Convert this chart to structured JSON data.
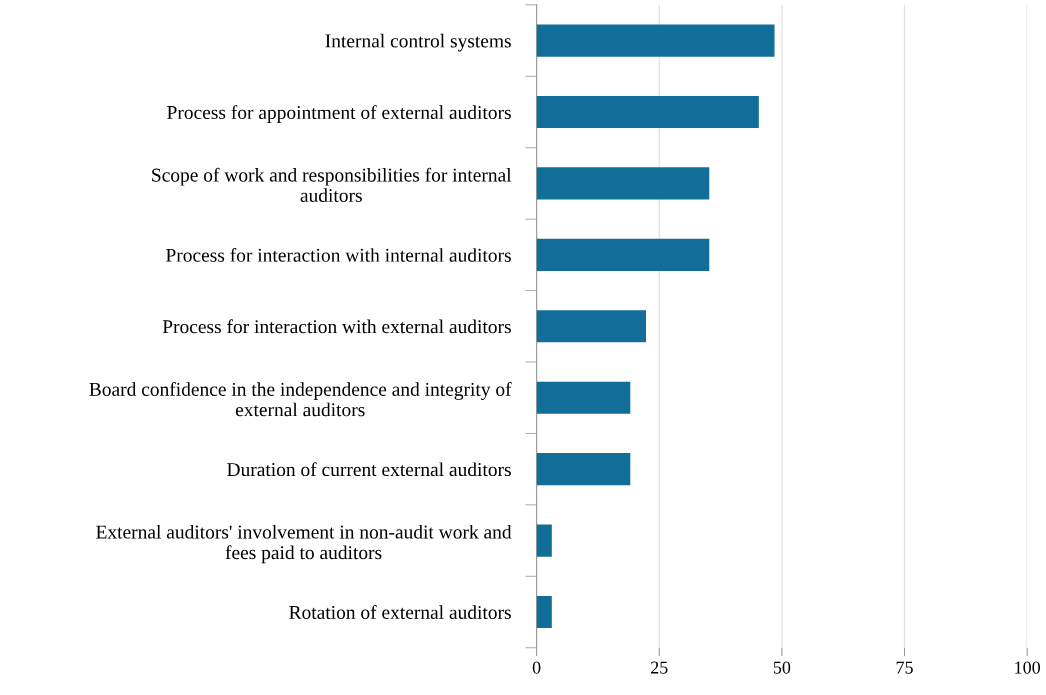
{
  "chart_data": {
    "type": "bar",
    "orientation": "horizontal",
    "categories": [
      "Internal control systems",
      "Process for appointment of external auditors",
      "Scope of work and responsibilities for internal\nauditors",
      "Process for interaction with internal auditors",
      "Process for interaction with external auditors",
      "Board confidence in the independence and integrity of\nexternal auditors",
      "Duration of current external auditors",
      "External auditors' involvement in non-audit work and\nfees paid to auditors",
      "Rotation of external auditors"
    ],
    "values": [
      48.5,
      45.3,
      35.2,
      35.2,
      22.3,
      19.1,
      19.1,
      3.1,
      3.1
    ],
    "color": "#106e98",
    "xlim": [
      0,
      100
    ],
    "xticks": [
      0,
      25,
      50,
      75,
      100
    ],
    "grid": "x"
  }
}
